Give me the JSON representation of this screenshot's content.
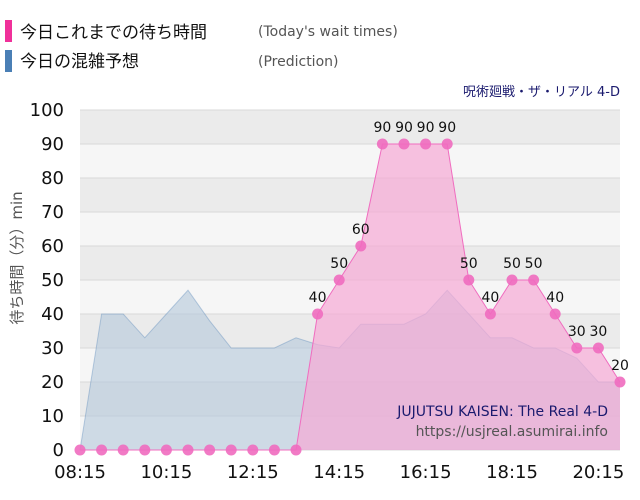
{
  "legend": {
    "today_label": "今日これまでの待ち時間",
    "today_note": "(Today's wait times)",
    "prediction_label": "今日の混雑予想",
    "prediction_note": "(Prediction)"
  },
  "attraction_name": "呪術廻戦・ザ・リアル 4-D",
  "watermark": {
    "title": "JUJUTSU KAISEN: The Real 4-D",
    "url": "https://usjreal.asumirai.info"
  },
  "colors": {
    "today": "#f06cbf",
    "today_fill": "#f7a9d6",
    "prediction": "#4a7fb5",
    "prediction_fill": "#b8cbdb",
    "grid": "#d8d8d8",
    "band_light": "#f6f6f6",
    "band_dark": "#ebebeb"
  },
  "chart_data": {
    "type": "area",
    "ylabel": "待ち時間（分）min",
    "ylim": [
      0,
      100
    ],
    "y_ticks": [
      0,
      10,
      20,
      30,
      40,
      50,
      60,
      70,
      80,
      90,
      100
    ],
    "x_ticks": [
      "08:15",
      "10:15",
      "12:15",
      "14:15",
      "16:15",
      "18:15",
      "20:15"
    ],
    "x": [
      "08:15",
      "08:45",
      "09:15",
      "09:45",
      "10:15",
      "10:45",
      "11:15",
      "11:45",
      "12:15",
      "12:45",
      "13:15",
      "13:45",
      "14:15",
      "14:45",
      "15:15",
      "15:45",
      "16:15",
      "16:45",
      "17:15",
      "17:45",
      "18:15",
      "18:45",
      "19:15",
      "19:45",
      "20:15",
      "20:45"
    ],
    "series": [
      {
        "name": "今日これまでの待ち時間",
        "values": [
          0,
          0,
          0,
          0,
          0,
          0,
          0,
          0,
          0,
          0,
          0,
          40,
          50,
          60,
          90,
          90,
          90,
          90,
          50,
          40,
          50,
          50,
          40,
          30,
          30,
          20
        ],
        "labels_shown": [
          40,
          50,
          60,
          90,
          90,
          90,
          90,
          50,
          40,
          50,
          50,
          40,
          30,
          30,
          20
        ]
      },
      {
        "name": "今日の混雑予想",
        "x_start": "08:15",
        "x_end": "20:45",
        "values": [
          0,
          40,
          40,
          33,
          40,
          47,
          38,
          30,
          30,
          30,
          33,
          31,
          30,
          37,
          37,
          37,
          40,
          47,
          40,
          33,
          33,
          30,
          30,
          27,
          20,
          20
        ]
      }
    ]
  }
}
